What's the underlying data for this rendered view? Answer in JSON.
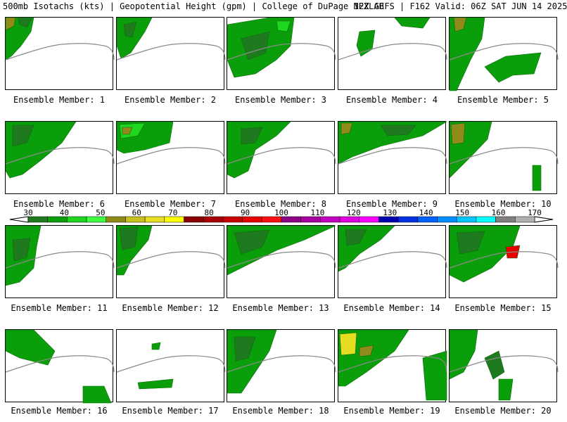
{
  "header": {
    "left": "500mb Isotachs (kts) | Geopotential Height (gpm) | College of DuPage NEXLAB",
    "right": "12Z GEFS | F162 Valid: 06Z SAT JUN 14 2025"
  },
  "panels": [
    {
      "label": "Ensemble Member: 1"
    },
    {
      "label": "Ensemble Member: 2"
    },
    {
      "label": "Ensemble Member: 3"
    },
    {
      "label": "Ensemble Member: 4"
    },
    {
      "label": "Ensemble Member: 5"
    },
    {
      "label": "Ensemble Member: 6"
    },
    {
      "label": "Ensemble Member: 7"
    },
    {
      "label": "Ensemble Member: 8"
    },
    {
      "label": "Ensemble Member: 9"
    },
    {
      "label": "Ensemble Member: 10"
    },
    {
      "label": "Ensemble Member: 11"
    },
    {
      "label": "Ensemble Member: 12"
    },
    {
      "label": "Ensemble Member: 13"
    },
    {
      "label": "Ensemble Member: 14"
    },
    {
      "label": "Ensemble Member: 15"
    },
    {
      "label": "Ensemble Member: 16"
    },
    {
      "label": "Ensemble Member: 17"
    },
    {
      "label": "Ensemble Member: 18"
    },
    {
      "label": "Ensemble Member: 19"
    },
    {
      "label": "Ensemble Member: 20"
    }
  ],
  "colorbar": {
    "labels": [
      "30",
      "40",
      "50",
      "60",
      "70",
      "80",
      "90",
      "100",
      "110",
      "120",
      "130",
      "140",
      "150",
      "160",
      "170"
    ],
    "colors": [
      "#1f7a1f",
      "#0b9e0b",
      "#1fd61f",
      "#3dff3d",
      "#8f8a1a",
      "#c9c11c",
      "#e6dd22",
      "#ffff00",
      "#8b0000",
      "#a80000",
      "#c80000",
      "#e60000",
      "#ff1010",
      "#8e0084",
      "#a800a0",
      "#c400c0",
      "#e000e0",
      "#ff00ff",
      "#0000b0",
      "#0030e0",
      "#0060ff",
      "#0090ff",
      "#00c8ff",
      "#00ffff",
      "#808080",
      "#b0b0b0"
    ]
  }
}
